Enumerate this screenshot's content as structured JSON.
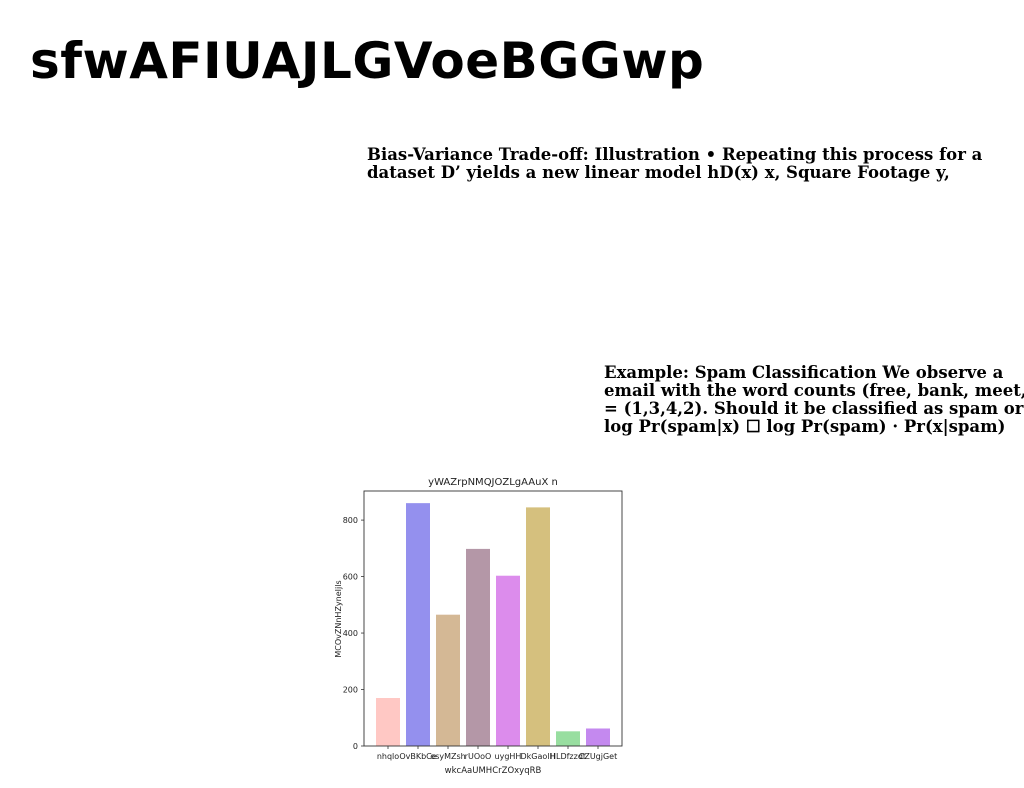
{
  "page": {
    "title": "sfwAFIUAJLGVoeBGGwp"
  },
  "text_blocks": [
    {
      "lines": [
        "Bias-Variance Trade-off: Illustration • Repeating this process for a",
        "dataset D’ yields a new linear model hD(x) x, Square Footage y,"
      ]
    },
    {
      "lines": [
        "Example: Spam Classification We observe a",
        "email with the word counts (free, bank, meet,",
        "= (1,3,4,2). Should it be classified as spam or",
        "log Pr(spam|x) ☐ log Pr(spam) · Pr(x|spam)"
      ]
    }
  ],
  "chart_data": {
    "type": "bar",
    "title": "yWAZrpNMQJOZLgAAuX n",
    "xlabel": "wkcAaUMHCrZOxyqRB",
    "ylabel": "MCOvZNnHZyneIjls",
    "categories": [
      "nhqlo",
      "OvBKbCe",
      "esyMZsh",
      "rUOoO",
      "uygHH",
      "DkGaolH",
      "HLDfzzdt",
      "CZUgjGet"
    ],
    "values": [
      170,
      860,
      465,
      698,
      603,
      845,
      52,
      62
    ],
    "colors": [
      "#ffc8c4",
      "#9490ee",
      "#d4b895",
      "#b497a7",
      "#dc8cec",
      "#d5c07e",
      "#98dea0",
      "#c489ef"
    ],
    "yticks": [
      0,
      200,
      400,
      600,
      800
    ],
    "ylim": [
      0,
      903
    ],
    "grid": false
  }
}
